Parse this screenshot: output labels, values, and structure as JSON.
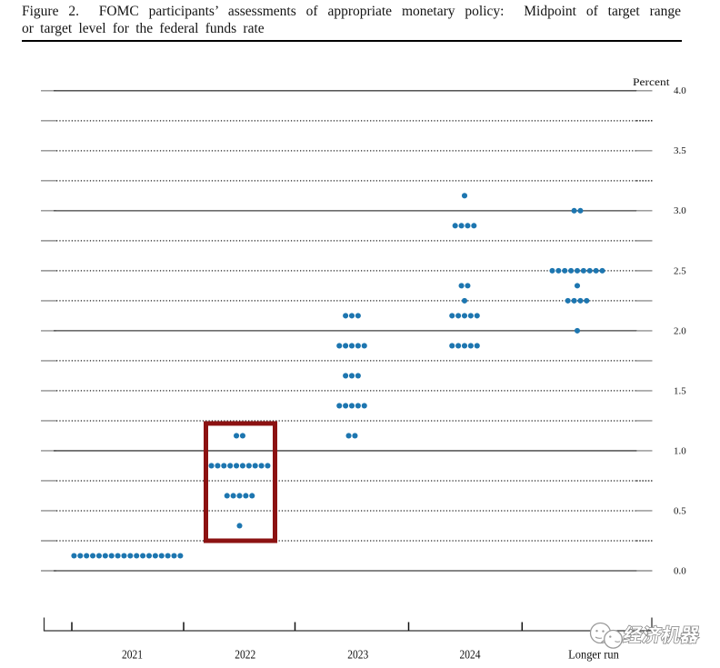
{
  "title": {
    "line1": "Figure 2.  FOMC participants’ assessments of appropriate monetary policy:  Midpoint of target range",
    "line2": "or target level for the federal funds rate"
  },
  "chart_data": {
    "type": "scatter",
    "variant": "fomc-dot-plot",
    "title": "FOMC participants' assessments of appropriate monetary policy: Midpoint of target range or target level for the federal funds rate",
    "unit_label": "Percent",
    "xlabel": "",
    "ylabel": "Percent",
    "x_categories": [
      "2021",
      "2022",
      "2023",
      "2024",
      "Longer run"
    ],
    "y_axis": {
      "min": 0.0,
      "max": 4.0,
      "grid_step": 0.25,
      "label_step": 0.5,
      "tick_labels": [
        "4.0",
        "3.5",
        "3.0",
        "2.5",
        "2.0",
        "1.5",
        "1.0",
        "0.5",
        "0.0"
      ],
      "dashed_end_levels": [
        3.75,
        3.25,
        0.75,
        0.25
      ]
    },
    "grid": "on",
    "series": [
      {
        "category": "2021",
        "dots": [
          {
            "value": 0.125,
            "count": 18
          }
        ]
      },
      {
        "category": "2022",
        "dots": [
          {
            "value": 1.125,
            "count": 2
          },
          {
            "value": 0.875,
            "count": 10
          },
          {
            "value": 0.625,
            "count": 5
          },
          {
            "value": 0.375,
            "count": 1
          }
        ]
      },
      {
        "category": "2023",
        "dots": [
          {
            "value": 2.125,
            "count": 3
          },
          {
            "value": 1.875,
            "count": 5
          },
          {
            "value": 1.625,
            "count": 3
          },
          {
            "value": 1.375,
            "count": 5
          },
          {
            "value": 1.125,
            "count": 2
          }
        ]
      },
      {
        "category": "2024",
        "dots": [
          {
            "value": 3.125,
            "count": 1
          },
          {
            "value": 2.875,
            "count": 4
          },
          {
            "value": 2.375,
            "count": 2
          },
          {
            "value": 2.25,
            "count": 1
          },
          {
            "value": 2.125,
            "count": 5
          },
          {
            "value": 1.875,
            "count": 5
          }
        ]
      },
      {
        "category": "Longer run",
        "dots": [
          {
            "value": 3.0,
            "count": 2
          },
          {
            "value": 2.5,
            "count": 9
          },
          {
            "value": 2.375,
            "count": 1
          },
          {
            "value": 2.25,
            "count": 4
          },
          {
            "value": 2.0,
            "count": 1
          }
        ]
      }
    ],
    "highlight": {
      "category": "2022",
      "value_from": 0.25,
      "value_to": 1.25
    },
    "colors": {
      "dot": "#1d76b0",
      "highlight_box": "#8c1212",
      "solid_gridline": "#3f3f3f",
      "dotted_gridline": "#1e1e1e",
      "end_tick": "#8f8f8f",
      "axis": "#333333",
      "text": "#111111"
    }
  },
  "watermark": {
    "text": "经济机器",
    "logo": "two-faces-logo"
  }
}
